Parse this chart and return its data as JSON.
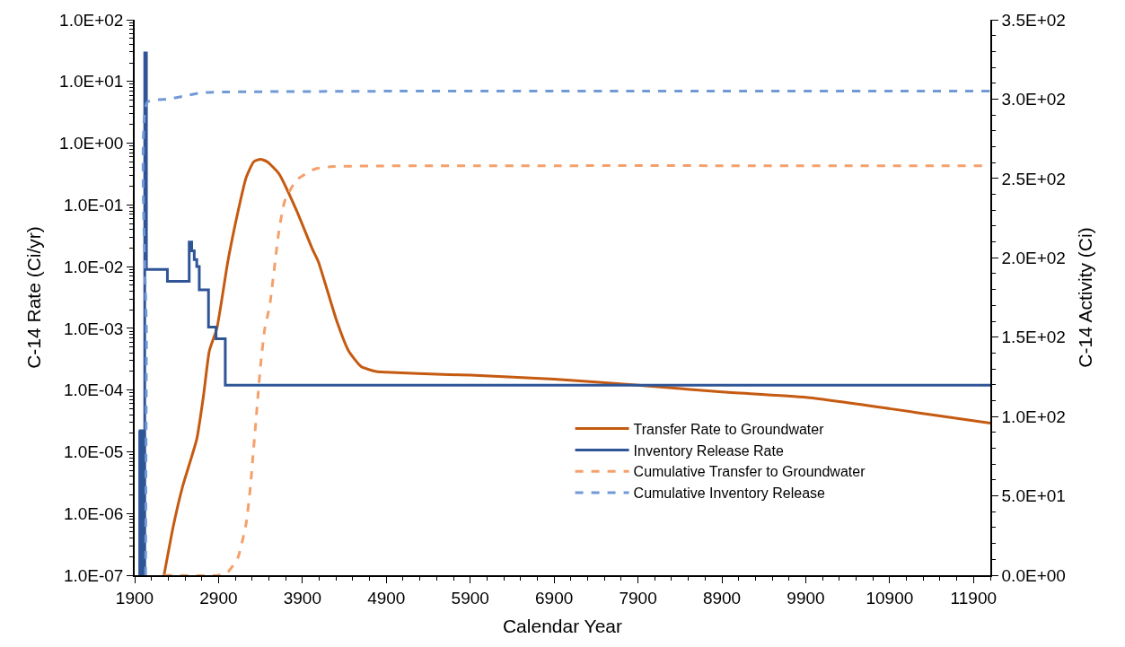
{
  "chart_data": {
    "type": "line",
    "xlabel": "Calendar Year",
    "ylabel": "C-14 Rate (Ci/yr)",
    "y2label": "C-14 Activity (Ci)",
    "log": "y",
    "legend": "bottom right",
    "xlim": [
      1900,
      12100
    ],
    "xticks": [
      1900,
      2900,
      3900,
      4900,
      5900,
      6900,
      7900,
      8900,
      9900,
      10900,
      11900
    ],
    "ylim": [
      1e-07,
      100
    ],
    "yticks": [
      {
        "value": 1e-07,
        "label": "1.0E-07"
      },
      {
        "value": 1e-06,
        "label": "1.0E-06"
      },
      {
        "value": 1e-05,
        "label": "1.0E-05"
      },
      {
        "value": 0.0001,
        "label": "1.0E-04"
      },
      {
        "value": 0.001,
        "label": "1.0E-03"
      },
      {
        "value": 0.01,
        "label": "1.0E-02"
      },
      {
        "value": 0.1,
        "label": "1.0E-01"
      },
      {
        "value": 1,
        "label": "1.0E+00"
      },
      {
        "value": 10,
        "label": "1.0E+01"
      },
      {
        "value": 100,
        "label": "1.0E+02"
      }
    ],
    "y2lim": [
      0,
      350
    ],
    "y2ticks": [
      {
        "value": 0,
        "label": "0.0E+00"
      },
      {
        "value": 50,
        "label": "5.0E+01"
      },
      {
        "value": 100,
        "label": "1.0E+02"
      },
      {
        "value": 150,
        "label": "1.5E+02"
      },
      {
        "value": 200,
        "label": "2.0E+02"
      },
      {
        "value": 250,
        "label": "2.5E+02"
      },
      {
        "value": 300,
        "label": "3.0E+02"
      },
      {
        "value": 350,
        "label": "3.5E+02"
      }
    ],
    "series": [
      {
        "name": "Transfer Rate to Groundwater",
        "color": "#c55a11",
        "line_style": "solid",
        "x": [
          2250,
          2360,
          2470,
          2640,
          2720,
          2790,
          2880,
          3010,
          3120,
          3230,
          3320,
          3400,
          3480,
          3620,
          3830,
          4020,
          4090,
          4310,
          4450,
          4600,
          4780,
          4900,
          5650,
          5900,
          6900,
          7900,
          8900,
          9900,
          10900,
          11500,
          12100
        ],
        "values": [
          1e-07,
          6.2e-07,
          2.7e-06,
          1.6e-05,
          8e-05,
          0.00043,
          0.001,
          0.012,
          0.066,
          0.28,
          0.5,
          0.55,
          0.5,
          0.32,
          0.081,
          0.019,
          0.012,
          0.0013,
          0.00043,
          0.00024,
          0.0002,
          0.000195,
          0.000178,
          0.000175,
          0.00015,
          0.00012,
          9.3e-05,
          7.6e-05,
          5e-05,
          3.8e-05,
          2.9e-05
        ]
      },
      {
        "name": "Inventory Release Rate",
        "color": "#2f5597",
        "type": "step",
        "line_style": "solid",
        "x": [
          1950,
          1960,
          1965,
          1975,
          1980,
          1990,
          1995,
          2010,
          2020,
          2040,
          2290,
          2550,
          2580,
          2610,
          2640,
          2670,
          2780,
          2870,
          2980,
          12100
        ],
        "values": [
          2.2e-05,
          1e-07,
          2.2e-05,
          1e-07,
          2.2e-05,
          1e-07,
          2.2e-05,
          1e-07,
          29,
          0.009,
          0.0058,
          0.025,
          0.018,
          0.013,
          0.01,
          0.0042,
          0.00105,
          0.00068,
          0.00012,
          0.00012
        ]
      },
      {
        "name": "Cumulative Transfer to Groundwater",
        "color": "#f4a06b",
        "axis": "y2",
        "line_style": "dashed",
        "x": [
          2250,
          2900,
          3010,
          3130,
          3230,
          3280,
          3310,
          3370,
          3400,
          3450,
          3510,
          3620,
          3690,
          3830,
          4050,
          4270,
          6000,
          12100
        ],
        "values": [
          0,
          0,
          2,
          11,
          33,
          56,
          75,
          113,
          132,
          155,
          170,
          217,
          236,
          249,
          256,
          257.5,
          258,
          258
        ]
      },
      {
        "name": "Cumulative Inventory Release",
        "color": "#7199d6",
        "axis": "y2",
        "line_style": "dashed",
        "x": [
          2030,
          2040,
          2050,
          2300,
          2500,
          2700,
          3000,
          5000,
          8000,
          12100
        ],
        "values": [
          0,
          150,
          298,
          300,
          302,
          304,
          304.5,
          305,
          305,
          305
        ]
      }
    ]
  }
}
